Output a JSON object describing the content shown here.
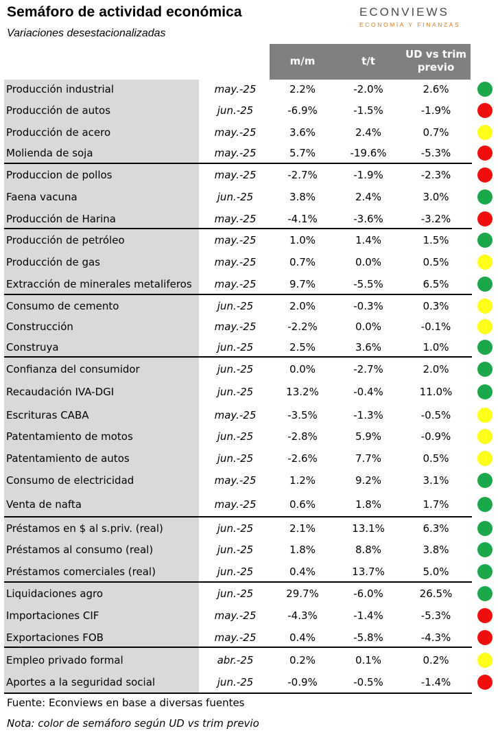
{
  "header": {
    "title": "Semáforo de actividad económica",
    "subtitle": "Variaciones desestacionalizadas",
    "logo_main": "ECONVIEWS",
    "logo_sub": "ECONOMÍA Y FINANZAS"
  },
  "columns": {
    "mm": "m/m",
    "tt": "t/t",
    "ud": "UD vs trim previo"
  },
  "colors": {
    "green": "#1aa84a",
    "red": "#f00f0f",
    "yellow": "#ffff1a",
    "header_gray": "#808080",
    "column_gray": "#d9d9d9"
  },
  "rows": [
    {
      "name": "Producción industrial",
      "date": "may.-25",
      "mm": "2.2%",
      "tt": "-2.0%",
      "ud": "2.6%",
      "signal": "green"
    },
    {
      "name": "Producción de autos",
      "date": "jun.-25",
      "mm": "-6.9%",
      "tt": "-1.5%",
      "ud": "-1.9%",
      "signal": "red"
    },
    {
      "name": "Producción de acero",
      "date": "may.-25",
      "mm": "3.6%",
      "tt": "2.4%",
      "ud": "0.7%",
      "signal": "yellow"
    },
    {
      "name": "Molienda de soja",
      "date": "may.-25",
      "mm": "5.7%",
      "tt": "-19.6%",
      "ud": "-5.3%",
      "signal": "red"
    },
    {
      "name": "Produccion de pollos",
      "date": "may.-25",
      "mm": "-2.7%",
      "tt": "-1.9%",
      "ud": "-2.3%",
      "signal": "red"
    },
    {
      "name": "Faena vacuna",
      "date": "jun.-25",
      "mm": "3.8%",
      "tt": "2.4%",
      "ud": "3.0%",
      "signal": "green"
    },
    {
      "name": "Producción de Harina",
      "date": "may.-25",
      "mm": "-4.1%",
      "tt": "-3.6%",
      "ud": "-3.2%",
      "signal": "red"
    },
    {
      "name": "Producción de petróleo",
      "date": "may.-25",
      "mm": "1.0%",
      "tt": "1.4%",
      "ud": "1.5%",
      "signal": "green"
    },
    {
      "name": "Producción de gas",
      "date": "may.-25",
      "mm": "0.7%",
      "tt": "0.0%",
      "ud": "0.5%",
      "signal": "yellow"
    },
    {
      "name": "Extracción de minerales metaliferos",
      "date": "may.-25",
      "mm": "9.7%",
      "tt": "-5.5%",
      "ud": "6.5%",
      "signal": "green"
    },
    {
      "name": "Consumo de cemento",
      "date": "jun.-25",
      "mm": "2.0%",
      "tt": "-0.3%",
      "ud": "0.3%",
      "signal": "yellow"
    },
    {
      "name": "Construcción",
      "date": "may.-25",
      "mm": "-2.2%",
      "tt": "0.0%",
      "ud": "-0.1%",
      "signal": "yellow"
    },
    {
      "name": "Construya",
      "date": "jun.-25",
      "mm": "2.5%",
      "tt": "3.6%",
      "ud": "1.0%",
      "signal": "green"
    },
    {
      "name": "Confianza del consumidor",
      "date": "jun.-25",
      "mm": "0.0%",
      "tt": "-2.7%",
      "ud": "2.0%",
      "signal": "green"
    },
    {
      "name": "Recaudación IVA-DGI",
      "date": "jun.-25",
      "mm": "13.2%",
      "tt": "-0.4%",
      "ud": "11.0%",
      "signal": "green"
    },
    {
      "name": "Escrituras CABA",
      "date": "may.-25",
      "mm": "-3.5%",
      "tt": "-1.3%",
      "ud": "-0.5%",
      "signal": "yellow"
    },
    {
      "name": "Patentamiento de motos",
      "date": "jun.-25",
      "mm": "-2.8%",
      "tt": "5.9%",
      "ud": "-0.9%",
      "signal": "yellow"
    },
    {
      "name": "Patentamiento de autos",
      "date": "jun.-25",
      "mm": "-2.6%",
      "tt": "7.7%",
      "ud": "0.5%",
      "signal": "yellow"
    },
    {
      "name": "Consumo de electricidad",
      "date": "may.-25",
      "mm": "1.2%",
      "tt": "9.2%",
      "ud": "3.1%",
      "signal": "green"
    },
    {
      "name": "Venta de nafta",
      "date": "may.-25",
      "mm": "0.6%",
      "tt": "1.8%",
      "ud": "1.7%",
      "signal": "green"
    },
    {
      "name": "Préstamos en $ al s.priv. (real)",
      "date": "jun.-25",
      "mm": "2.1%",
      "tt": "13.1%",
      "ud": "6.3%",
      "signal": "green"
    },
    {
      "name": "Préstamos al consumo (real)",
      "date": "jun.-25",
      "mm": "1.8%",
      "tt": "8.8%",
      "ud": "3.8%",
      "signal": "green"
    },
    {
      "name": "Préstamos comerciales (real)",
      "date": "jun.-25",
      "mm": "0.4%",
      "tt": "13.7%",
      "ud": "5.0%",
      "signal": "green"
    },
    {
      "name": "Liquidaciones agro",
      "date": "jun.-25",
      "mm": "29.7%",
      "tt": "-6.0%",
      "ud": "26.5%",
      "signal": "green"
    },
    {
      "name": "Importaciones CIF",
      "date": "may.-25",
      "mm": "-4.3%",
      "tt": "-1.4%",
      "ud": "-5.3%",
      "signal": "red"
    },
    {
      "name": "Exportaciones FOB",
      "date": "may.-25",
      "mm": "0.4%",
      "tt": "-5.8%",
      "ud": "-4.3%",
      "signal": "red"
    },
    {
      "name": "Empleo privado formal",
      "date": "abr.-25",
      "mm": "0.2%",
      "tt": "0.1%",
      "ud": "0.2%",
      "signal": "yellow"
    },
    {
      "name": "Aportes a la seguridad social",
      "date": "jun.-25",
      "mm": "-0.9%",
      "tt": "-0.5%",
      "ud": "-1.4%",
      "signal": "red"
    }
  ],
  "footer": {
    "source": "Fuente: Econviews en base a diversas fuentes",
    "note": "Nota: color de semáforo según UD vs trim previo"
  }
}
